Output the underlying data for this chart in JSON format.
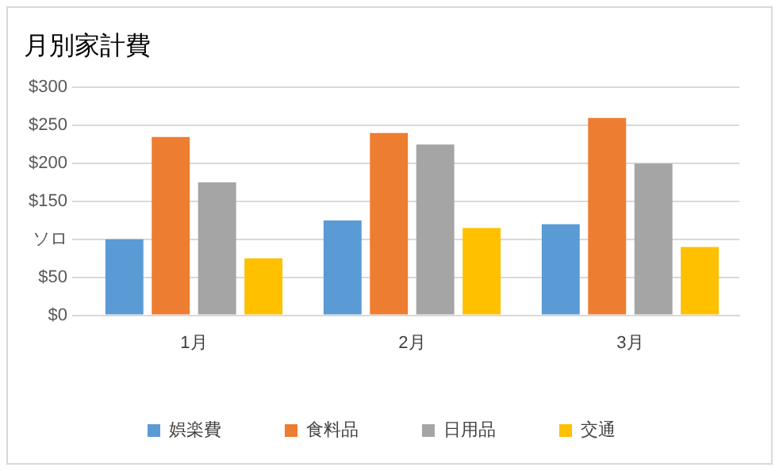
{
  "chart_data": {
    "type": "bar",
    "title": "月別家計費",
    "categories": [
      "1月",
      "2月",
      "3月"
    ],
    "series": [
      {
        "name": "娯楽費",
        "color": "#5b9bd5",
        "values": [
          100,
          125,
          120
        ]
      },
      {
        "name": "食料品",
        "color": "#ed7d31",
        "values": [
          235,
          240,
          260
        ]
      },
      {
        "name": "日用品",
        "color": "#a5a5a5",
        "values": [
          175,
          225,
          200
        ]
      },
      {
        "name": "交通",
        "color": "#ffc000",
        "values": [
          75,
          115,
          90
        ]
      }
    ],
    "ylim": [
      0,
      300
    ],
    "yticks": [
      "$0",
      "$50",
      {
        "value": 100,
        "label": "ソロ"
      },
      "$150",
      "$200",
      "$250",
      "$300"
    ],
    "grid": "y",
    "legend": "bottom"
  }
}
